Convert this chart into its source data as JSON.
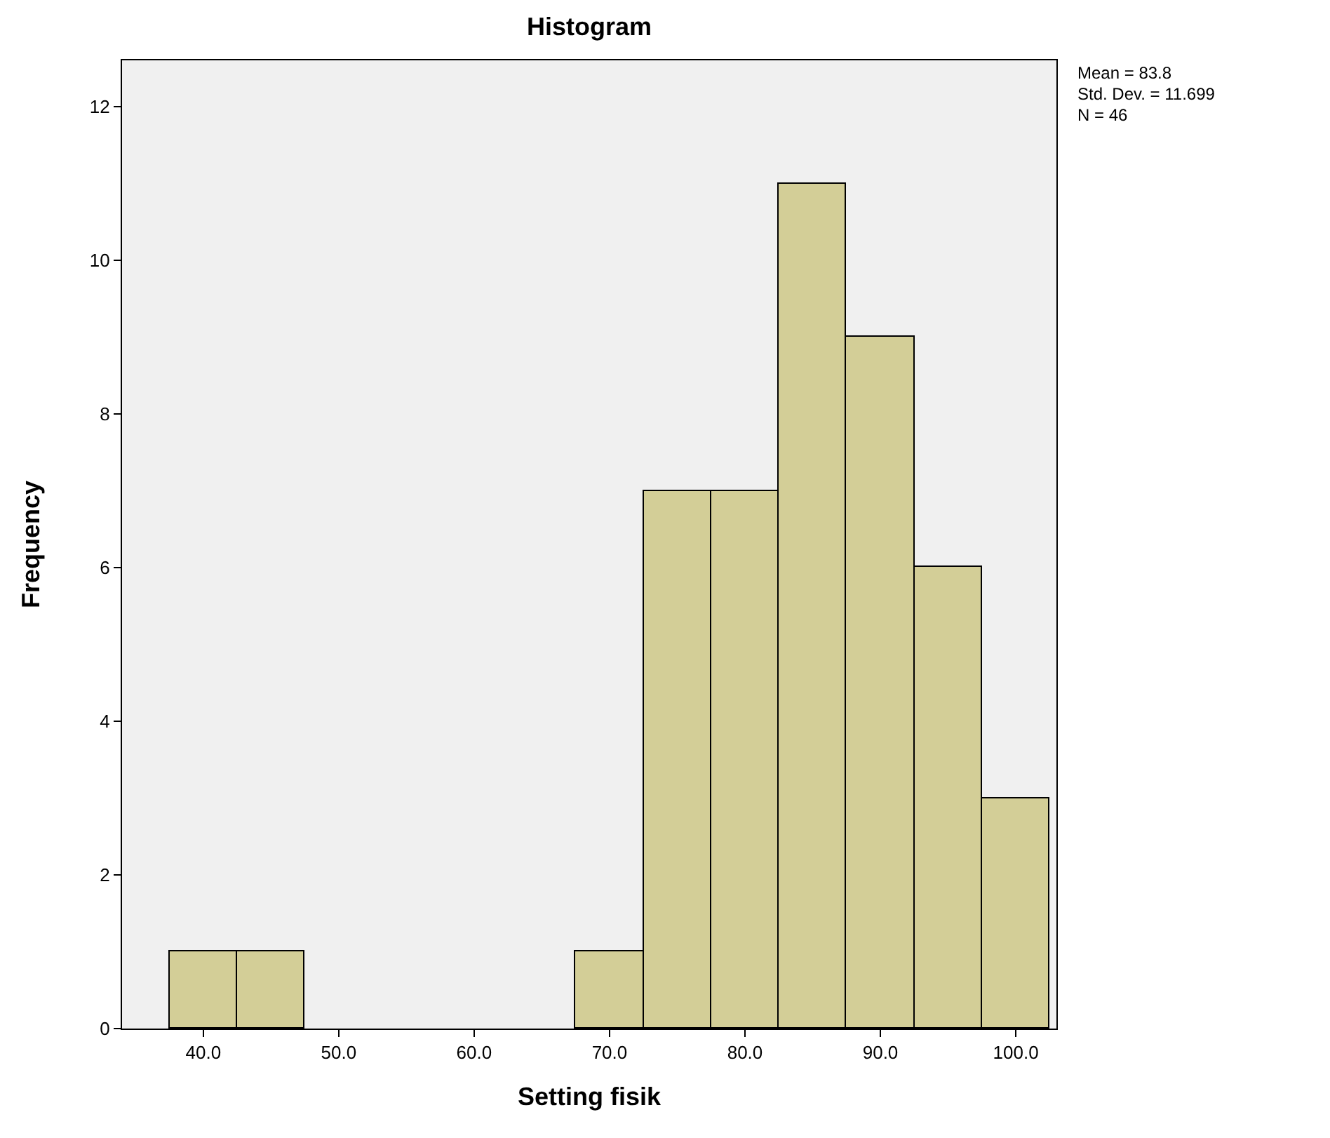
{
  "chart_data": {
    "type": "histogram",
    "title": "Histogram",
    "xlabel": "Setting fisik",
    "ylabel": "Frequency",
    "bins": [
      37.5,
      42.5,
      47.5,
      52.5,
      57.5,
      62.5,
      67.5,
      72.5,
      77.5,
      82.5,
      87.5,
      92.5,
      97.5,
      102.5
    ],
    "values": [
      1,
      1,
      0,
      0,
      0,
      0,
      1,
      7,
      7,
      11,
      9,
      6,
      3
    ],
    "color": "#d3ce97",
    "xlim": [
      34.0,
      103.0
    ],
    "xticks": [
      {
        "value": 40,
        "label": "40.0"
      },
      {
        "value": 50,
        "label": "50.0"
      },
      {
        "value": 60,
        "label": "60.0"
      },
      {
        "value": 70,
        "label": "70.0"
      },
      {
        "value": 80,
        "label": "80.0"
      },
      {
        "value": 90,
        "label": "90.0"
      },
      {
        "value": 100,
        "label": "100.0"
      }
    ],
    "ylim": [
      0,
      12.6
    ],
    "yticks": [
      0,
      2,
      4,
      6,
      8,
      10,
      12
    ],
    "grid": false,
    "annotations": [
      "Mean = 83.8",
      "Std. Dev. = 11.699",
      "N = 46"
    ]
  }
}
